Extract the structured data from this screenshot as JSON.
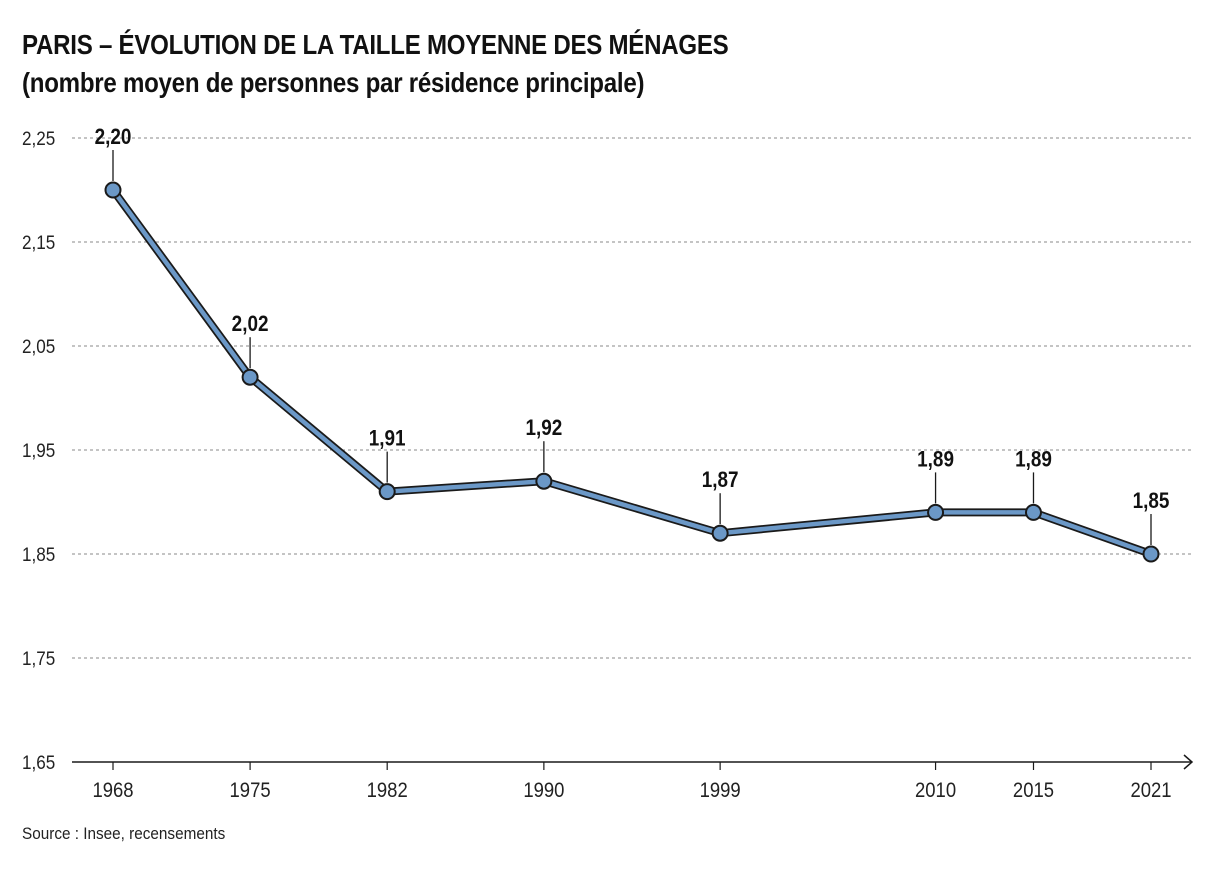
{
  "title_line1": "PARIS – ÉVOLUTION DE LA TAILLE MOYENNE DES MÉNAGES",
  "title_line2": "(nombre moyen de personnes par résidence principale)",
  "source": "Source : Insee, recensements",
  "chart_data": {
    "type": "line",
    "x": [
      1968,
      1975,
      1982,
      1990,
      1999,
      2010,
      2015,
      2021
    ],
    "x_tick_labels": [
      "1968",
      "1975",
      "1982",
      "1990",
      "1999",
      "2010",
      "2015",
      "2021"
    ],
    "values": [
      2.2,
      2.02,
      1.91,
      1.92,
      1.87,
      1.89,
      1.89,
      1.85
    ],
    "data_labels": [
      "2,20",
      "2,02",
      "1,91",
      "1,92",
      "1,87",
      "1,89",
      "1,89",
      "1,85"
    ],
    "y_ticks": [
      1.65,
      1.75,
      1.85,
      1.95,
      2.05,
      2.15,
      2.25
    ],
    "y_tick_labels": [
      "1,65",
      "1,75",
      "1,85",
      "1,95",
      "2,05",
      "2,15",
      "2,25"
    ],
    "ylim": [
      1.65,
      2.25
    ],
    "xlim": [
      1966.4,
      2022.6
    ],
    "grid": "horizontal dotted",
    "line_color": "#6b98c7",
    "marker_color": "#6b98c7",
    "outline_color": "#1a1a1a"
  }
}
